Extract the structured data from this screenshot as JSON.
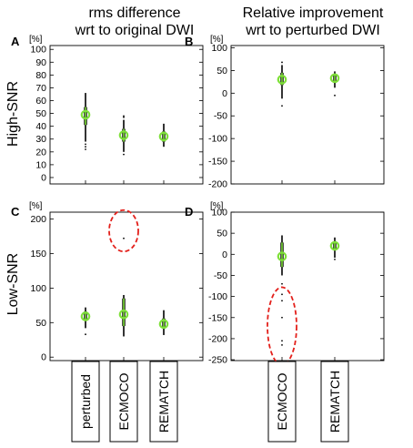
{
  "figure": {
    "col_titles": [
      [
        "rms difference",
        "wrt to original DWI"
      ],
      [
        "Relative improvement",
        "wrt to perturbed DWI"
      ]
    ],
    "row_labels": [
      "High-SNR",
      "Low-SNR"
    ],
    "colors": {
      "whisker": "#000000",
      "marker": "#7fe03a",
      "outlier_ring": "#e3201b"
    }
  },
  "chart_data": [
    {
      "panel": "A",
      "type": "scatter",
      "ylabel": "[%]",
      "ylim": [
        -5,
        103
      ],
      "yticks": [
        0,
        10,
        20,
        30,
        40,
        50,
        60,
        70,
        80,
        90,
        100
      ],
      "categories": [
        "perturbed",
        "ECMOCO",
        "REMATCH"
      ],
      "distributions": [
        {
          "category": "perturbed",
          "median": 49,
          "box": [
            41,
            55
          ],
          "range": [
            28,
            66
          ],
          "extremes": [
            22,
            24,
            26
          ]
        },
        {
          "category": "ECMOCO",
          "median": 33,
          "box": [
            28,
            38
          ],
          "range": [
            20,
            45
          ],
          "extremes": [
            18,
            47,
            48
          ]
        },
        {
          "category": "REMATCH",
          "median": 32,
          "box": [
            28,
            36
          ],
          "range": [
            24,
            42
          ],
          "extremes": []
        }
      ],
      "annotations": []
    },
    {
      "panel": "B",
      "type": "scatter",
      "ylabel": "[%]",
      "ylim": [
        -200,
        105
      ],
      "yticks": [
        -200,
        -150,
        -100,
        -50,
        0,
        50,
        100
      ],
      "categories": [
        "ECMOCO",
        "REMATCH"
      ],
      "distributions": [
        {
          "category": "ECMOCO",
          "median": 30,
          "box": [
            18,
            45
          ],
          "range": [
            -12,
            62
          ],
          "extremes": [
            -28,
            68
          ]
        },
        {
          "category": "REMATCH",
          "median": 33,
          "box": [
            25,
            40
          ],
          "range": [
            12,
            48
          ],
          "extremes": [
            -5
          ]
        }
      ],
      "annotations": []
    },
    {
      "panel": "C",
      "type": "scatter",
      "ylabel": "[%]",
      "ylim": [
        -5,
        210
      ],
      "yticks": [
        0,
        50,
        100,
        150,
        200
      ],
      "categories": [
        "perturbed",
        "ECMOCO",
        "REMATCH"
      ],
      "distributions": [
        {
          "category": "perturbed",
          "median": 59,
          "box": [
            53,
            66
          ],
          "range": [
            42,
            72
          ],
          "extremes": [
            33
          ]
        },
        {
          "category": "ECMOCO",
          "median": 62,
          "box": [
            45,
            85
          ],
          "range": [
            30,
            90
          ],
          "extremes": [
            172
          ]
        },
        {
          "category": "REMATCH",
          "median": 48,
          "box": [
            42,
            56
          ],
          "range": [
            32,
            68
          ],
          "extremes": []
        }
      ],
      "annotations": [
        {
          "shape": "dashed-ellipse",
          "category": "ECMOCO",
          "y_center": 183,
          "y_halfheight": 30
        }
      ]
    },
    {
      "panel": "D",
      "type": "scatter",
      "ylabel": "[%]",
      "ylim": [
        -252,
        100
      ],
      "yticks": [
        -250,
        -200,
        -150,
        -100,
        -50,
        0,
        50,
        100
      ],
      "categories": [
        "ECMOCO",
        "REMATCH"
      ],
      "distributions": [
        {
          "category": "ECMOCO",
          "median": -5,
          "box": [
            -30,
            28
          ],
          "range": [
            -50,
            45
          ],
          "extremes": [
            -70,
            -95,
            -110,
            -150,
            -205,
            -215
          ]
        },
        {
          "category": "REMATCH",
          "median": 20,
          "box": [
            10,
            28
          ],
          "range": [
            -8,
            40
          ],
          "extremes": [
            -12
          ]
        }
      ],
      "annotations": [
        {
          "shape": "dashed-ellipse",
          "category": "ECMOCO",
          "y_center": -170,
          "y_halfheight": 92
        }
      ]
    }
  ]
}
